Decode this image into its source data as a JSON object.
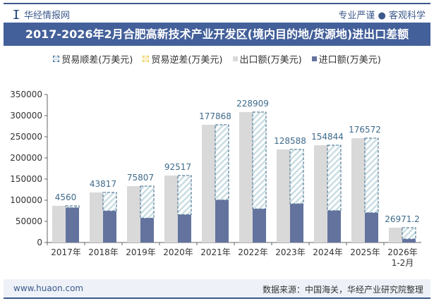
{
  "header": {
    "brand": "华经情报网",
    "slogan": "专业严谨 ● 客观科学"
  },
  "title": "2017-2026年2月合肥高新技术产业开发区(境内目的地/货源地)进出口差额",
  "footer": {
    "website": "www.huaon.com",
    "source": "数据来源：中国海关，华经产业研究院整理"
  },
  "chart_data": {
    "type": "bar",
    "title": "2017-2026年2月合肥高新技术产业开发区(境内目的地/货源地)进出口差额",
    "categories": [
      "2017年",
      "2018年",
      "2019年",
      "2020年",
      "2021年",
      "2022年",
      "2023年",
      "2024年",
      "2025年",
      "2026年 1-2月"
    ],
    "series": [
      {
        "name": "贸易顺差(万美元)",
        "values": [
          4560,
          43817,
          75807,
          92517,
          177868,
          228909,
          128588,
          154844,
          176572,
          26971.2
        ],
        "color": "#3d6a8a"
      },
      {
        "name": "贸易逆差(万美元)",
        "values": [
          null,
          null,
          null,
          null,
          null,
          null,
          null,
          null,
          null,
          null
        ],
        "color": "#e8c64a"
      },
      {
        "name": "出口额(万美元)",
        "values": [
          86700,
          118300,
          133300,
          158300,
          278300,
          308300,
          220000,
          230000,
          246700,
          35000
        ],
        "color": "#d9d9d9"
      },
      {
        "name": "进口额(万美元)",
        "values": [
          82140,
          74483,
          57493,
          65783,
          100432,
          79391,
          91412,
          75156,
          70128,
          8029
        ],
        "color": "#63739e"
      }
    ],
    "ylim": [
      0,
      350000
    ],
    "yticks": [
      "0",
      "50000",
      "100000",
      "150000",
      "200000",
      "250000",
      "300000",
      "350000"
    ],
    "legend": "top",
    "grid": false
  }
}
